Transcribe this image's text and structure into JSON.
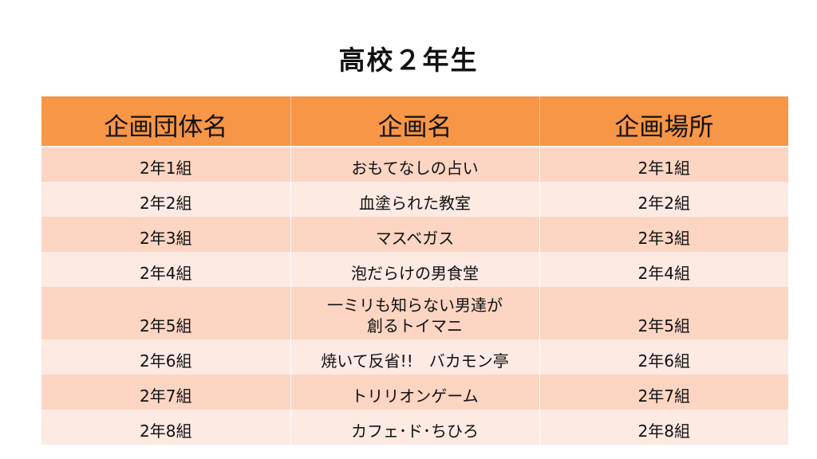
{
  "title": "高校２年生",
  "table": {
    "headers": [
      "企画団体名",
      "企画名",
      "企画場所"
    ],
    "rows": [
      {
        "group": "2年1組",
        "project": "おもてなしの占い",
        "location": "2年1組"
      },
      {
        "group": "2年2組",
        "project": "血塗られた教室",
        "location": "2年2組"
      },
      {
        "group": "2年3組",
        "project": "マスベガス",
        "location": "2年3組"
      },
      {
        "group": "2年4組",
        "project": "泡だらけの男食堂",
        "location": "2年4組"
      },
      {
        "group": "2年5組",
        "project_line1": "一ミリも知らない男達が",
        "project_line2": "創るトイマニ",
        "location": "2年5組"
      },
      {
        "group": "2年6組",
        "project": "焼いて反省!!　バカモン亭",
        "location": "2年6組"
      },
      {
        "group": "2年7組",
        "project": "トリリオンゲーム",
        "location": "2年7組"
      },
      {
        "group": "2年8組",
        "project": "カフェ･ド･ちひろ",
        "location": "2年8組"
      }
    ]
  },
  "colors": {
    "header_bg": "#f79646",
    "row_odd_bg": "#fcd5c3",
    "row_even_bg": "#fdeae3"
  }
}
